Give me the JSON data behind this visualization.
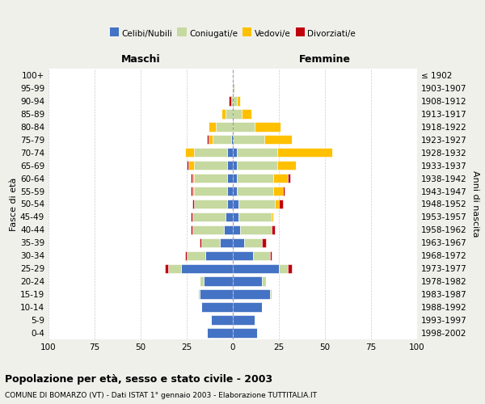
{
  "age_groups": [
    "0-4",
    "5-9",
    "10-14",
    "15-19",
    "20-24",
    "25-29",
    "30-34",
    "35-39",
    "40-44",
    "45-49",
    "50-54",
    "55-59",
    "60-64",
    "65-69",
    "70-74",
    "75-79",
    "80-84",
    "85-89",
    "90-94",
    "95-99",
    "100+"
  ],
  "birth_years": [
    "1998-2002",
    "1993-1997",
    "1988-1992",
    "1983-1987",
    "1978-1982",
    "1973-1977",
    "1968-1972",
    "1963-1967",
    "1958-1962",
    "1953-1957",
    "1948-1952",
    "1943-1947",
    "1938-1942",
    "1933-1937",
    "1928-1932",
    "1923-1927",
    "1918-1922",
    "1913-1917",
    "1908-1912",
    "1903-1907",
    "≤ 1902"
  ],
  "male_celibi": [
    14,
    12,
    17,
    18,
    16,
    28,
    15,
    7,
    5,
    4,
    3,
    3,
    3,
    3,
    3,
    1,
    0,
    0,
    0,
    0,
    0
  ],
  "male_coniugati": [
    0,
    0,
    0,
    1,
    2,
    7,
    10,
    10,
    17,
    18,
    18,
    18,
    18,
    18,
    18,
    10,
    9,
    4,
    1,
    0,
    0
  ],
  "male_vedovi": [
    0,
    0,
    0,
    0,
    0,
    0,
    0,
    0,
    0,
    0,
    0,
    1,
    1,
    3,
    5,
    2,
    4,
    2,
    0,
    0,
    0
  ],
  "male_divorziati": [
    0,
    0,
    0,
    0,
    0,
    2,
    1,
    1,
    1,
    1,
    1,
    1,
    1,
    1,
    0,
    1,
    0,
    0,
    1,
    0,
    0
  ],
  "female_celibi": [
    13,
    12,
    16,
    20,
    16,
    25,
    11,
    6,
    4,
    3,
    3,
    2,
    2,
    2,
    2,
    0,
    0,
    0,
    0,
    0,
    0
  ],
  "female_coniugati": [
    0,
    0,
    0,
    1,
    2,
    5,
    9,
    10,
    17,
    18,
    20,
    20,
    20,
    22,
    22,
    17,
    12,
    5,
    2,
    1,
    0
  ],
  "female_vedovi": [
    0,
    0,
    0,
    0,
    0,
    0,
    0,
    0,
    0,
    1,
    2,
    5,
    8,
    10,
    30,
    15,
    14,
    5,
    2,
    0,
    0
  ],
  "female_divorziati": [
    0,
    0,
    0,
    0,
    0,
    2,
    1,
    2,
    2,
    0,
    2,
    1,
    1,
    0,
    0,
    0,
    0,
    0,
    0,
    0,
    0
  ],
  "colors": {
    "celibi": "#4472c4",
    "coniugati": "#c6d9a0",
    "vedovi": "#ffc000",
    "divorziati": "#c0000b"
  },
  "xlim": 100,
  "title": "Popolazione per età, sesso e stato civile - 2003",
  "subtitle": "COMUNE DI BOMARZO (VT) - Dati ISTAT 1° gennaio 2003 - Elaborazione TUTTITALIA.IT",
  "ylabel_left": "Fasce di età",
  "ylabel_right": "Anni di nascita",
  "header_left": "Maschi",
  "header_right": "Femmine",
  "legend_labels": [
    "Celibi/Nubili",
    "Coniugati/e",
    "Vedovi/e",
    "Divorziati/e"
  ],
  "bg_color": "#f0f0eb",
  "plot_bg": "#ffffff",
  "xticks": [
    100,
    75,
    50,
    25,
    0,
    25,
    50,
    75,
    100
  ]
}
